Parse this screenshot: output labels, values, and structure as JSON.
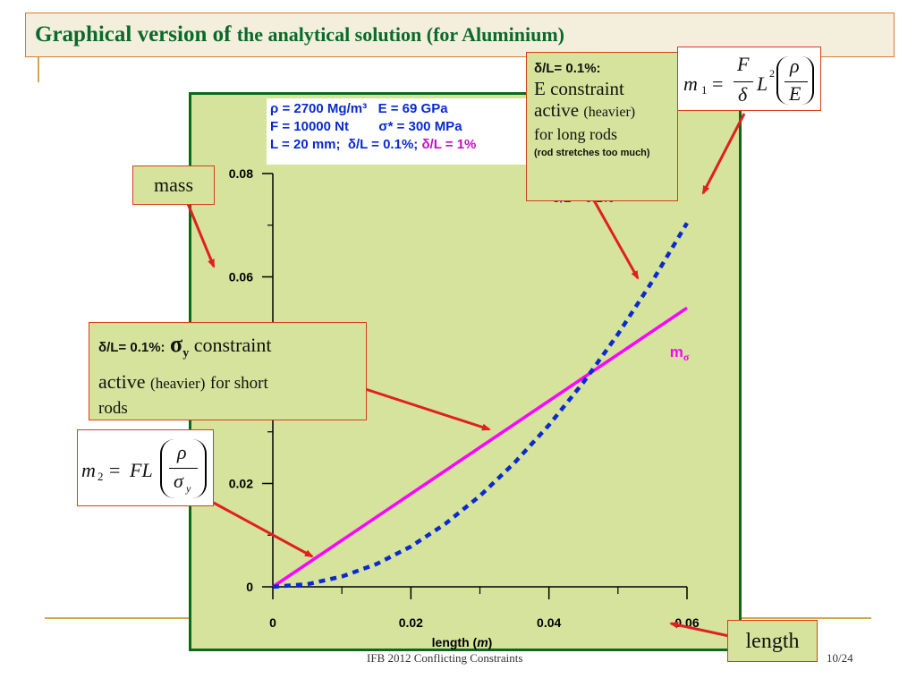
{
  "slide": {
    "title_part1": "Graphical version of",
    "title_part2": "the analytical solution (for Aluminium)",
    "footer_center": "IFB 2012 Conflicting Constraints",
    "footer_page": "10/24",
    "colors": {
      "title": "#0a6a2a",
      "panel": "#d6e39c",
      "panel_border": "#0a6a1a",
      "callout_border": "#d4401a",
      "arrow": "#e02020",
      "accent_line": "#d4a74a"
    }
  },
  "params": {
    "line1": "ρ = 2700 Mg/m³   E = 69 GPa",
    "line2": "F = 10000 Nt        σ* = 300 MPa",
    "line3a": "L = 20 mm;  δ/L = 0.1%;",
    "line3b": "δ/L = 1%"
  },
  "callouts": {
    "mass": "mass",
    "length": "length",
    "e_constraint": {
      "head": "δ/L= 0.1%:",
      "line1": "E constraint",
      "line2a": "active",
      "line2b": "(heavier)",
      "line3": "for long rods",
      "note": "(rod stretches  too much)"
    },
    "sigma_constraint": {
      "head": "δ/L= 0.1%:",
      "sym": "σ",
      "sub": "y",
      "line1": "constraint",
      "line2a": "active",
      "line2b": "(heavier)",
      "line2c": "for short",
      "line3": "rods"
    },
    "formula_m1": {
      "lhs": "m",
      "sub": "1",
      "eq": "=",
      "num": "F",
      "den": "δ",
      "L": "L",
      "sq": "2",
      "rho": "ρ",
      "E": "E"
    },
    "formula_m2": {
      "lhs": "m",
      "sub": "2",
      "eq": "=",
      "FL": "FL",
      "rho": "ρ",
      "sig": "σ",
      "sig_sub": "y"
    }
  },
  "chart_data": {
    "type": "line",
    "title": "",
    "xlabel": "length (m)",
    "ylabel": "",
    "xlim": [
      0,
      0.06
    ],
    "ylim": [
      0,
      0.08
    ],
    "x_ticks": [
      0,
      0.02,
      0.04,
      0.06
    ],
    "x_tick_labels": [
      "0",
      "0.02",
      "0.04",
      "0.06"
    ],
    "y_ticks": [
      0,
      0.02,
      0.04,
      0.06,
      0.08
    ],
    "y_tick_labels": [
      "0",
      "0.02",
      "",
      "0.06",
      "0.08"
    ],
    "series": [
      {
        "name": "m_σ",
        "label_main": "m",
        "label_sub": "σ",
        "style": "solid",
        "color": "#ff00ff",
        "x": [
          0,
          0.06
        ],
        "y": [
          0,
          0.054
        ]
      },
      {
        "name": "δ/L = 0.1%",
        "label_main": "δ/L = 0.1%",
        "style": "dotted",
        "color": "#0a2ad0",
        "x": [
          0,
          0.005,
          0.01,
          0.015,
          0.02,
          0.025,
          0.03,
          0.035,
          0.04,
          0.045,
          0.05,
          0.055,
          0.06
        ],
        "y": [
          0,
          0.0005,
          0.002,
          0.0044,
          0.0078,
          0.0122,
          0.0176,
          0.024,
          0.0313,
          0.0396,
          0.0489,
          0.0592,
          0.0704
        ]
      }
    ]
  }
}
